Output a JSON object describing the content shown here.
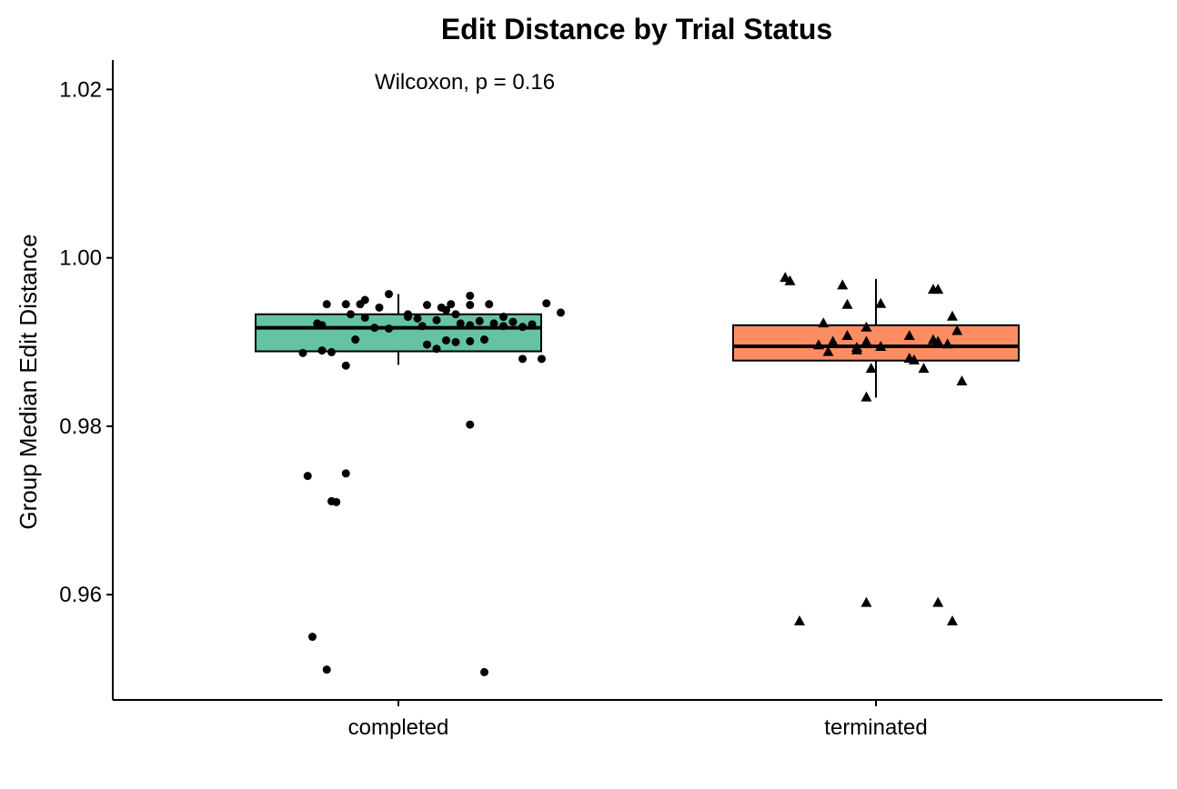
{
  "chart_data": {
    "type": "box",
    "title": "Edit Distance by Trial Status",
    "xlabel": "",
    "ylabel": "Group Median Edit Distance",
    "ylim": [
      0.9475,
      1.0235
    ],
    "yticks": [
      0.96,
      0.98,
      1.0,
      1.02
    ],
    "ytick_labels": [
      "0.96",
      "0.98",
      "1.00",
      "1.02"
    ],
    "categories": [
      "completed",
      "terminated"
    ],
    "annotation": "Wilcoxon, p = 0.16",
    "grid": false,
    "legend": "none",
    "series": [
      {
        "category": "completed",
        "fill": "#66C2A5",
        "marker": "circle",
        "box": {
          "q1": 0.9889,
          "median": 0.9917,
          "q3": 0.9933,
          "whisker_low": 0.9873,
          "whisker_high": 0.9957
        },
        "points": [
          [
            -0.15,
            0.9945
          ],
          [
            -0.11,
            0.9945
          ],
          [
            -0.17,
            0.9922
          ],
          [
            -0.16,
            0.992
          ],
          [
            -0.1,
            0.9933
          ],
          [
            -0.07,
            0.9929
          ],
          [
            -0.04,
            0.9941
          ],
          [
            -0.02,
            0.9957
          ],
          [
            0.02,
            0.9933
          ],
          [
            0.04,
            0.9928
          ],
          [
            0.06,
            0.9944
          ],
          [
            0.1,
            0.9938
          ],
          [
            0.12,
            0.9933
          ],
          [
            0.13,
            0.9922
          ],
          [
            0.15,
            0.992
          ],
          [
            0.08,
            0.9926
          ],
          [
            0.09,
            0.9941
          ],
          [
            0.11,
            0.9945
          ],
          [
            0.15,
            0.9944
          ],
          [
            0.17,
            0.9925
          ],
          [
            0.2,
            0.9922
          ],
          [
            0.22,
            0.9919
          ],
          [
            0.24,
            0.9924
          ],
          [
            0.26,
            0.9918
          ],
          [
            0.28,
            0.9921
          ],
          [
            -0.05,
            0.9917
          ],
          [
            0.05,
            0.9919
          ],
          [
            -0.02,
            0.9916
          ],
          [
            0.02,
            0.993
          ],
          [
            -0.08,
            0.9945
          ],
          [
            0.19,
            0.9945
          ],
          [
            -0.2,
            0.9887
          ],
          [
            -0.16,
            0.989
          ],
          [
            -0.14,
            0.9888
          ],
          [
            -0.11,
            0.9872
          ],
          [
            0.06,
            0.9897
          ],
          [
            0.1,
            0.9902
          ],
          [
            0.08,
            0.9892
          ],
          [
            0.12,
            0.99
          ],
          [
            0.18,
            0.9903
          ],
          [
            -0.09,
            0.9903
          ],
          [
            0.26,
            0.988
          ],
          [
            0.34,
            0.9935
          ],
          [
            0.31,
            0.9946
          ],
          [
            0.22,
            0.993
          ],
          [
            0.15,
            0.9955
          ],
          [
            -0.07,
            0.995
          ],
          [
            0.15,
            0.9901
          ],
          [
            0.3,
            0.988
          ],
          [
            0.15,
            0.9802
          ],
          [
            -0.19,
            0.9741
          ],
          [
            -0.11,
            0.9744
          ],
          [
            -0.14,
            0.9711
          ],
          [
            -0.13,
            0.971
          ],
          [
            -0.18,
            0.955
          ],
          [
            -0.15,
            0.9511
          ],
          [
            0.18,
            0.9508
          ]
        ]
      },
      {
        "category": "terminated",
        "fill": "#FC8D62",
        "marker": "triangle",
        "box": {
          "q1": 0.9878,
          "median": 0.9895,
          "q3": 0.992,
          "whisker_low": 0.9834,
          "whisker_high": 0.9975
        },
        "points": [
          [
            -0.19,
            0.9976
          ],
          [
            -0.18,
            0.9972
          ],
          [
            -0.07,
            0.9967
          ],
          [
            -0.06,
            0.9944
          ],
          [
            0.01,
            0.9945
          ],
          [
            0.12,
            0.9962
          ],
          [
            0.13,
            0.9962
          ],
          [
            -0.11,
            0.9922
          ],
          [
            -0.09,
            0.99
          ],
          [
            -0.06,
            0.9907
          ],
          [
            -0.04,
            0.989
          ],
          [
            -0.02,
            0.99
          ],
          [
            -0.12,
            0.9896
          ],
          [
            -0.1,
            0.9888
          ],
          [
            -0.04,
            0.9893
          ],
          [
            -0.02,
            0.9917
          ],
          [
            0.01,
            0.9894
          ],
          [
            0.07,
            0.9907
          ],
          [
            0.12,
            0.9902
          ],
          [
            0.16,
            0.993
          ],
          [
            0.17,
            0.9913
          ],
          [
            0.15,
            0.9897
          ],
          [
            0.13,
            0.99
          ],
          [
            0.07,
            0.988
          ],
          [
            0.08,
            0.9878
          ],
          [
            0.1,
            0.9868
          ],
          [
            -0.01,
            0.9868
          ],
          [
            0.18,
            0.9853
          ],
          [
            -0.02,
            0.9834
          ],
          [
            -0.16,
            0.9568
          ],
          [
            -0.02,
            0.959
          ],
          [
            0.13,
            0.959
          ],
          [
            0.16,
            0.9568
          ]
        ]
      }
    ]
  }
}
